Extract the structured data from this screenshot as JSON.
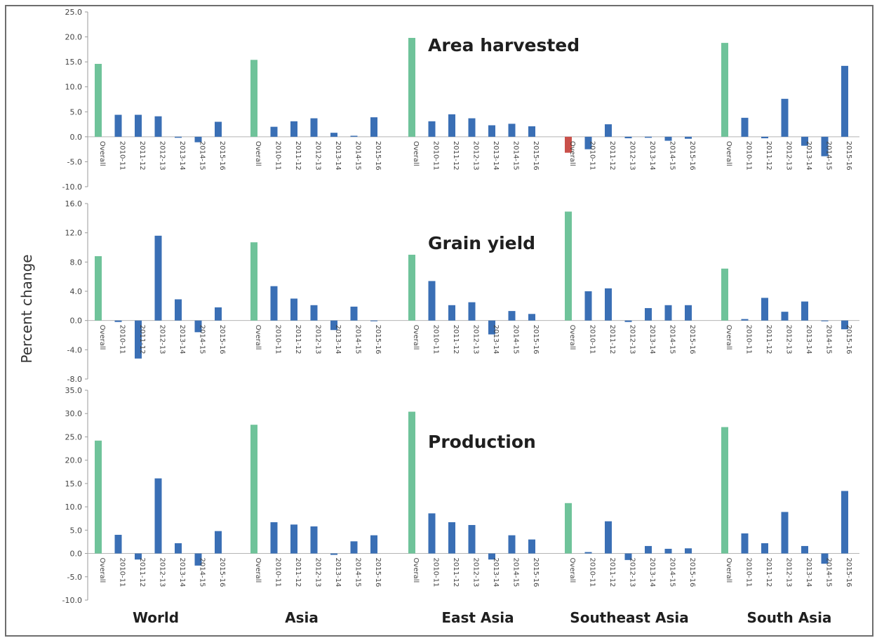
{
  "ylabel": "Percent change",
  "regions": [
    "World",
    "Asia",
    "East Asia",
    "Southeast Asia",
    "South Asia"
  ],
  "colors": {
    "overall": "#6fc39a",
    "period": "#3a6fb5",
    "negative_overall": "#c9504a",
    "frame": "#6d6d6d"
  },
  "chart_data": [
    {
      "type": "bar",
      "title": "Area harvested",
      "ylabel": "Percent change",
      "ylim": [
        -10,
        25
      ],
      "yticks": [
        "25.0",
        "20.0",
        "15.0",
        "10.0",
        "5.0",
        "0.0",
        "-5.0",
        "-10.0"
      ],
      "categories": [
        "Overall",
        "2010-11",
        "2011-12",
        "2012-13",
        "2013-14",
        "2014-15",
        "2015-16"
      ],
      "groups": [
        {
          "name": "World",
          "values": [
            14.6,
            4.4,
            4.4,
            4.1,
            -0.2,
            -1.1,
            3.0
          ]
        },
        {
          "name": "Asia",
          "values": [
            15.4,
            2.0,
            3.1,
            3.7,
            0.8,
            0.2,
            3.9
          ]
        },
        {
          "name": "East Asia",
          "values": [
            19.8,
            3.1,
            4.5,
            3.7,
            2.3,
            2.6,
            2.1
          ]
        },
        {
          "name": "Southeast Asia",
          "values": [
            -3.2,
            -2.5,
            2.5,
            -0.3,
            -0.2,
            -0.8,
            -0.4
          ]
        },
        {
          "name": "South Asia",
          "values": [
            18.8,
            3.8,
            -0.3,
            7.6,
            -1.8,
            -3.9,
            14.2
          ]
        }
      ]
    },
    {
      "type": "bar",
      "title": "Grain yield",
      "ylabel": "Percent change",
      "ylim": [
        -8,
        16
      ],
      "yticks": [
        "16.0",
        "12.0",
        "8.0",
        "4.0",
        "0.0",
        "-4.0",
        "-8.0"
      ],
      "categories": [
        "Overall",
        "2010-11",
        "2011-12",
        "2012-13",
        "2013-14",
        "2014-15",
        "2015-16"
      ],
      "groups": [
        {
          "name": "World",
          "values": [
            8.8,
            -0.2,
            -5.2,
            11.6,
            2.9,
            -1.6,
            1.8
          ]
        },
        {
          "name": "Asia",
          "values": [
            10.7,
            4.7,
            3.0,
            2.1,
            -1.3,
            1.9,
            -0.1
          ]
        },
        {
          "name": "East Asia",
          "values": [
            9.0,
            5.4,
            2.1,
            2.5,
            -1.9,
            1.3,
            0.9
          ]
        },
        {
          "name": "Southeast Asia",
          "values": [
            14.9,
            4.0,
            4.4,
            -0.2,
            1.7,
            2.1,
            2.1
          ]
        },
        {
          "name": "South Asia",
          "values": [
            7.1,
            0.2,
            3.1,
            1.2,
            2.6,
            -0.1,
            -1.2
          ]
        }
      ]
    },
    {
      "type": "bar",
      "title": "Production",
      "ylabel": "Percent change",
      "ylim": [
        -10,
        35
      ],
      "yticks": [
        "35.0",
        "30.0",
        "25.0",
        "20.0",
        "15.0",
        "10.0",
        "5.0",
        "0.0",
        "-5.0",
        "-10.0"
      ],
      "categories": [
        "Overall",
        "2010-11",
        "2011-12",
        "2012-13",
        "2013-14",
        "2014-15",
        "2015-16"
      ],
      "groups": [
        {
          "name": "World",
          "values": [
            24.2,
            4.0,
            -1.3,
            16.1,
            2.2,
            -2.6,
            4.8
          ]
        },
        {
          "name": "Asia",
          "values": [
            27.6,
            6.7,
            6.2,
            5.8,
            -0.3,
            2.6,
            3.9
          ]
        },
        {
          "name": "East Asia",
          "values": [
            30.4,
            8.6,
            6.7,
            6.1,
            -1.3,
            3.9,
            3.0
          ]
        },
        {
          "name": "Southeast Asia",
          "values": [
            10.8,
            0.3,
            6.9,
            -1.4,
            1.6,
            1.0,
            1.1
          ]
        },
        {
          "name": "South Asia",
          "values": [
            27.1,
            4.3,
            2.2,
            8.9,
            1.6,
            -2.2,
            13.4
          ]
        }
      ]
    }
  ]
}
